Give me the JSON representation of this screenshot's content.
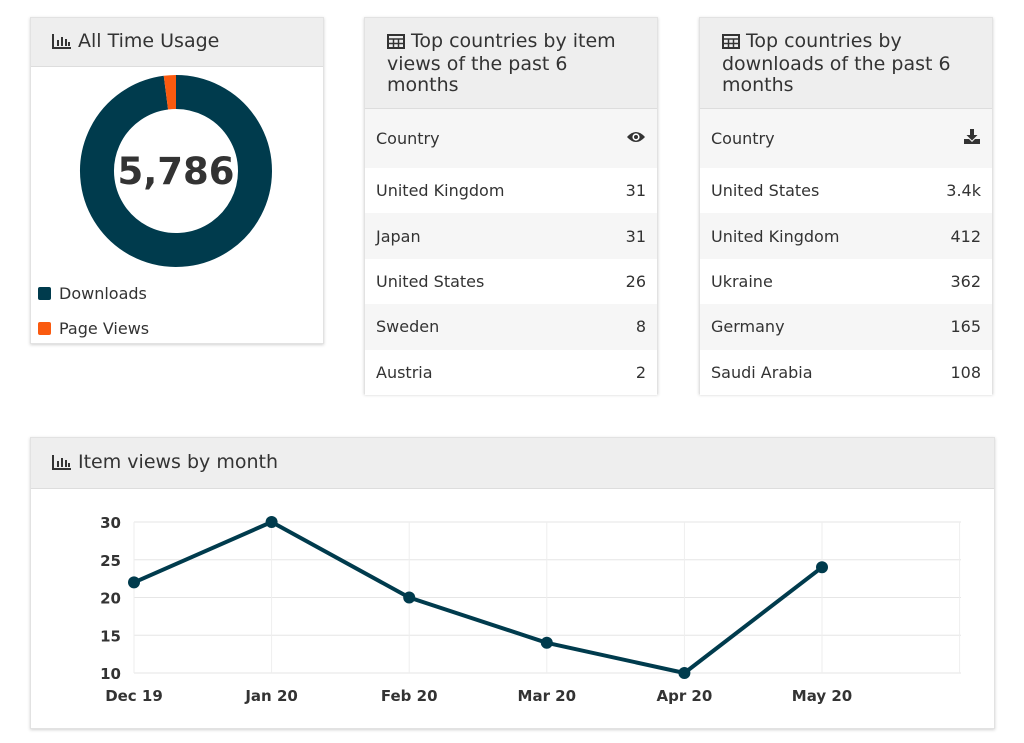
{
  "colors": {
    "downloads": "#003b4d",
    "page_views": "#fa5a0f",
    "line": "#003b4d",
    "header_bg": "#eeeeee"
  },
  "usage": {
    "title": "All Time Usage",
    "icon": "bar-chart-icon",
    "total": "5,786",
    "legend": [
      {
        "label": "Downloads"
      },
      {
        "label": "Page Views"
      }
    ]
  },
  "chart_data": [
    {
      "type": "pie",
      "title": "All Time Usage",
      "labels": [
        "Downloads",
        "Page Views"
      ],
      "values": [
        5668,
        118
      ],
      "center_label": "5,786"
    },
    {
      "type": "line",
      "title": "Item views by month",
      "categories": [
        "Dec 19",
        "Jan 20",
        "Feb 20",
        "Mar 20",
        "Apr 20",
        "May 20"
      ],
      "series": [
        {
          "values": [
            22,
            30,
            20,
            14,
            10,
            24
          ]
        }
      ],
      "ylim": [
        10,
        30
      ],
      "yticks": [
        "30",
        "25",
        "20",
        "15",
        "10"
      ],
      "grid": true
    }
  ],
  "views_table": {
    "title_lines": [
      "Top countries by item",
      "views of the past 6",
      "months"
    ],
    "icon": "table-icon",
    "column_country": "Country",
    "column_icon": "eye-icon",
    "rows": [
      {
        "country": "United Kingdom",
        "value": "31"
      },
      {
        "country": "Japan",
        "value": "31"
      },
      {
        "country": "United States",
        "value": "26"
      },
      {
        "country": "Sweden",
        "value": "8"
      },
      {
        "country": "Austria",
        "value": "2"
      }
    ]
  },
  "downloads_table": {
    "title_lines": [
      "Top countries by",
      "downloads of the past 6",
      "months"
    ],
    "icon": "table-icon",
    "column_country": "Country",
    "column_icon": "download-icon",
    "rows": [
      {
        "country": "United States",
        "value": "3.4k"
      },
      {
        "country": "United Kingdom",
        "value": "412"
      },
      {
        "country": "Ukraine",
        "value": "362"
      },
      {
        "country": "Germany",
        "value": "165"
      },
      {
        "country": "Saudi Arabia",
        "value": "108"
      }
    ]
  },
  "monthly": {
    "title": "Item views by month",
    "icon": "bar-chart-icon"
  }
}
